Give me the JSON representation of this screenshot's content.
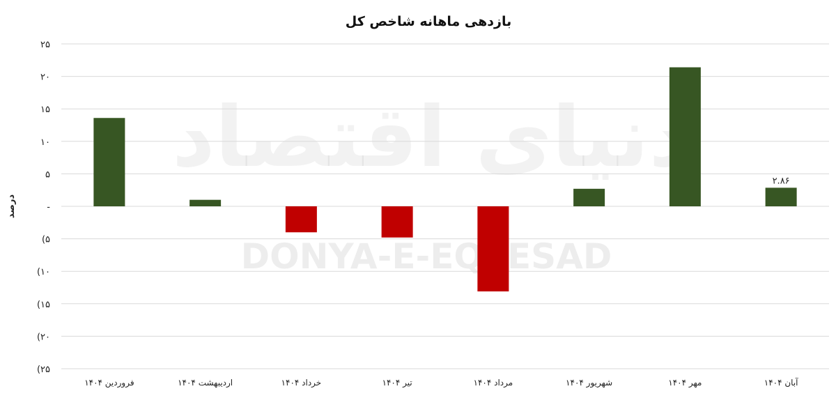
{
  "chart_data": {
    "type": "bar",
    "title": "بازدهی ماهانه شاخص کل",
    "ylabel": "درصد",
    "xlabel": "",
    "ylim": [
      -25,
      25
    ],
    "yticks": [
      25,
      20,
      15,
      10,
      5,
      0,
      -5,
      -10,
      -15,
      -20,
      -25
    ],
    "ytick_labels": [
      "۲۵",
      "۲۰",
      "۱۵",
      "۱۰",
      "۵",
      "-",
      "(۵",
      "(۱۰",
      "(۱۵",
      "(۲۰",
      "(۲۵"
    ],
    "grid": true,
    "legend": "none",
    "categories": [
      "فروردین ۱۴۰۴",
      "اردیبهشت ۱۴۰۴",
      "خرداد ۱۴۰۴",
      "تیر ۱۴۰۴",
      "مرداد ۱۴۰۴",
      "شهریور ۱۴۰۴",
      "مهر ۱۴۰۴",
      "آبان ۱۴۰۴"
    ],
    "values": [
      13.6,
      1.0,
      -4.0,
      -4.8,
      -13.1,
      2.7,
      21.4,
      2.86
    ],
    "data_labels": [
      null,
      null,
      null,
      null,
      null,
      null,
      null,
      "۲.۸۶"
    ],
    "colors": {
      "positive": "#375623",
      "negative": "#c00000"
    }
  },
  "watermark": {
    "text_latin": "DONYA-E-EQTESAD",
    "text_persian": "دنیای اقتصاد"
  }
}
